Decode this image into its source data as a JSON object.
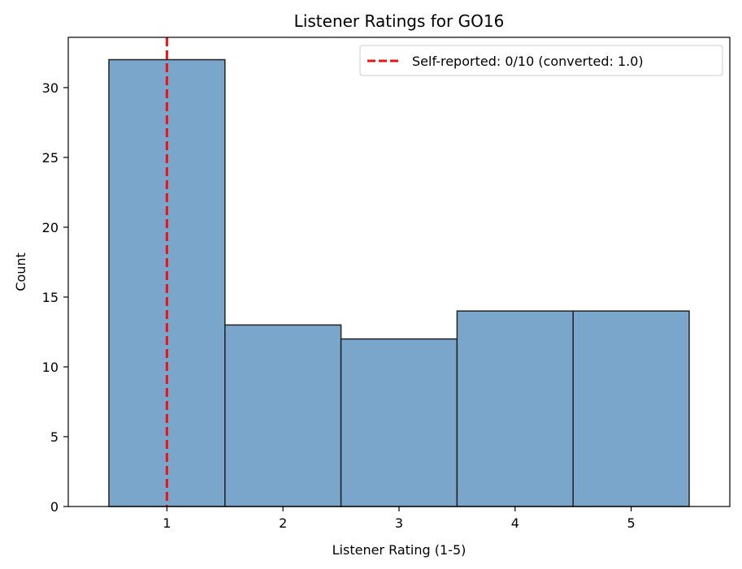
{
  "chart_data": {
    "type": "bar",
    "title": "Listener Ratings for GO16",
    "xlabel": "Listener Rating (1-5)",
    "ylabel": "Count",
    "categories": [
      1,
      2,
      3,
      4,
      5
    ],
    "values": [
      32,
      13,
      12,
      14,
      14
    ],
    "xlim": [
      0.15,
      5.85
    ],
    "ylim": [
      0,
      33.6
    ],
    "xticks": [
      1,
      2,
      3,
      4,
      5
    ],
    "yticks": [
      0,
      5,
      10,
      15,
      20,
      25,
      30
    ],
    "bar_color": "#7ba6cb",
    "bar_edge_color": "#222222",
    "reference_line": {
      "x": 1.0,
      "color": "#ee1111",
      "style": "dashed",
      "label": "Self-reported: 0/10 (converted: 1.0)"
    },
    "legend_position": "top-right",
    "grid": false
  }
}
